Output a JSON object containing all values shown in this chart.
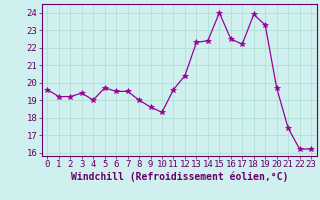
{
  "x": [
    0,
    1,
    2,
    3,
    4,
    5,
    6,
    7,
    8,
    9,
    10,
    11,
    12,
    13,
    14,
    15,
    16,
    17,
    18,
    19,
    20,
    21,
    22,
    23
  ],
  "y": [
    19.6,
    19.2,
    19.2,
    19.4,
    19.0,
    19.7,
    19.5,
    19.5,
    19.0,
    18.6,
    18.3,
    19.6,
    20.4,
    22.3,
    22.4,
    24.0,
    22.5,
    22.2,
    23.9,
    23.3,
    19.7,
    17.4,
    16.2,
    16.2
  ],
  "line_color": "#990099",
  "marker": "*",
  "marker_size": 4,
  "bg_color": "#d0f0f0",
  "grid_color": "#aaddcc",
  "xlabel": "Windchill (Refroidissement éolien,°C)",
  "xlabel_color": "#660066",
  "tick_color": "#660066",
  "ylim": [
    15.8,
    24.5
  ],
  "xlim": [
    -0.5,
    23.5
  ],
  "yticks": [
    16,
    17,
    18,
    19,
    20,
    21,
    22,
    23,
    24
  ],
  "xticks": [
    0,
    1,
    2,
    3,
    4,
    5,
    6,
    7,
    8,
    9,
    10,
    11,
    12,
    13,
    14,
    15,
    16,
    17,
    18,
    19,
    20,
    21,
    22,
    23
  ],
  "spine_color": "#660066",
  "tick_fontsize": 6.5,
  "xlabel_fontsize": 7.0
}
